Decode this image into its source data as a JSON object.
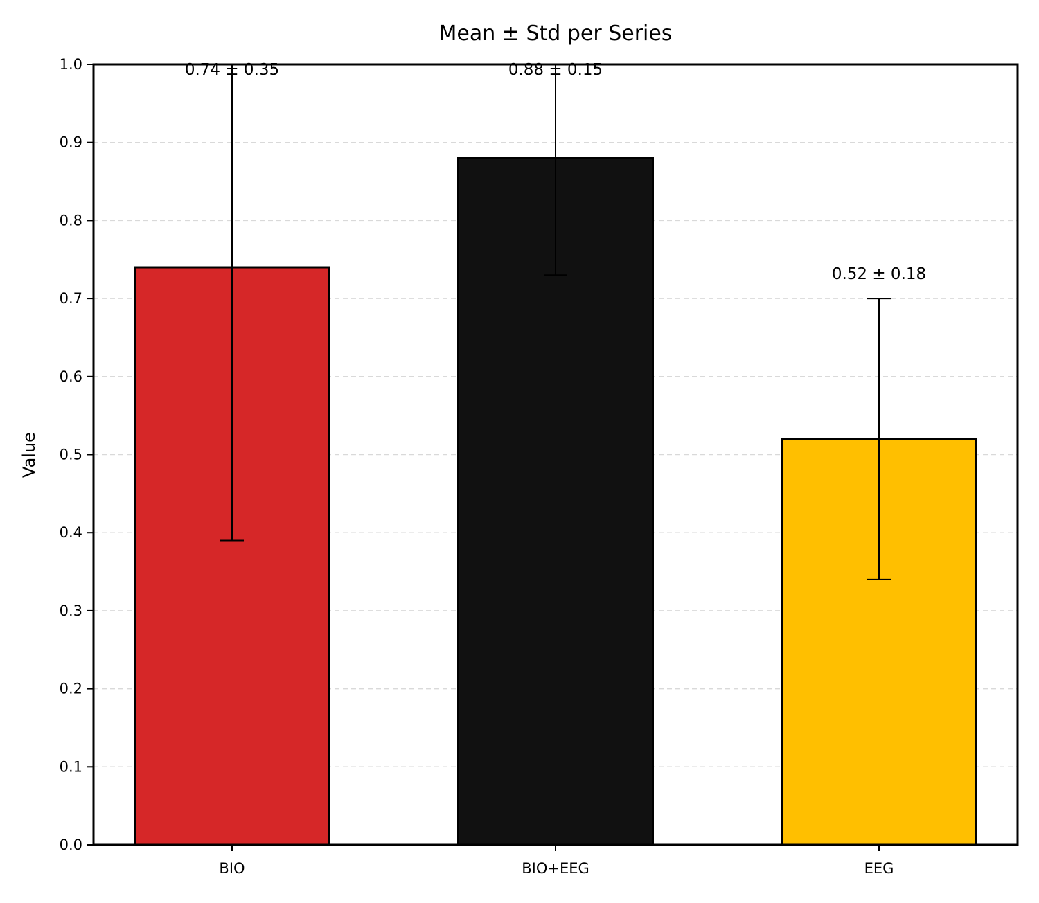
{
  "chart_data": {
    "type": "bar",
    "title": "Mean ± Std per Series",
    "xlabel": "",
    "ylabel": "Value",
    "ylim": [
      0,
      1.0
    ],
    "yticks": [
      "0.0",
      "0.1",
      "0.2",
      "0.3",
      "0.4",
      "0.5",
      "0.6",
      "0.7",
      "0.8",
      "0.9",
      "1.0"
    ],
    "grid": "horizontal dashed",
    "categories": [
      "BIO",
      "BIO+EEG",
      "EEG"
    ],
    "values": [
      0.74,
      0.88,
      0.52
    ],
    "errors": [
      0.35,
      0.15,
      0.18
    ],
    "annotations": [
      "0.74 ± 0.35",
      "0.88 ± 0.15",
      "0.52 ± 0.18"
    ],
    "colors": [
      "#d62728",
      "#111111",
      "#ffbf00"
    ]
  }
}
